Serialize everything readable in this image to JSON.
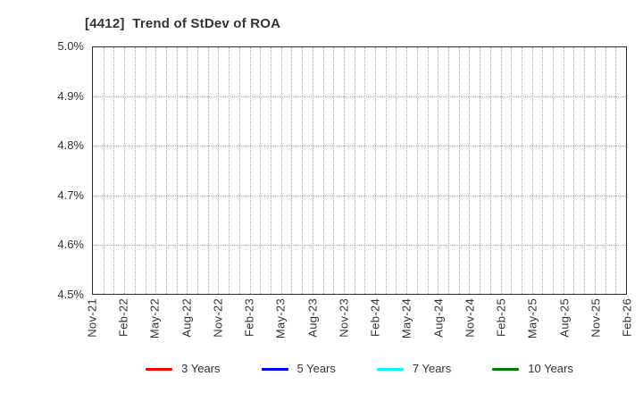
{
  "page": {
    "background": "#ffffff"
  },
  "chart_data": {
    "type": "line",
    "title": "[4412]  Trend of StDev of ROA",
    "xlabel": "",
    "ylabel": "",
    "y_unit": "%",
    "ylim": [
      4.5,
      5.0
    ],
    "y_tick_step": 0.1,
    "y_tick_labels": [
      "5.0%",
      "4.9%",
      "4.8%",
      "4.7%",
      "4.6%",
      "4.5%"
    ],
    "x_tick_labels": [
      "Nov-21",
      "Feb-22",
      "May-22",
      "Aug-22",
      "Nov-22",
      "Feb-23",
      "May-23",
      "Aug-23",
      "Nov-23",
      "Feb-24",
      "May-24",
      "Aug-24",
      "Nov-24",
      "Feb-25",
      "May-25",
      "Aug-25",
      "Nov-25",
      "Feb-26"
    ],
    "months_per_tick": 3,
    "grid": true,
    "grid_style": "dotted",
    "legend_position": "bottom",
    "series": [
      {
        "name": "3 Years",
        "color": "#ff0000",
        "values": []
      },
      {
        "name": "5 Years",
        "color": "#0000ff",
        "values": []
      },
      {
        "name": "7 Years",
        "color": "#00ffff",
        "values": []
      },
      {
        "name": "10 Years",
        "color": "#008000",
        "values": []
      }
    ]
  },
  "colors": {
    "axis_border": "#2e2e2e",
    "grid_line": "#ababab",
    "text": "#333333"
  }
}
